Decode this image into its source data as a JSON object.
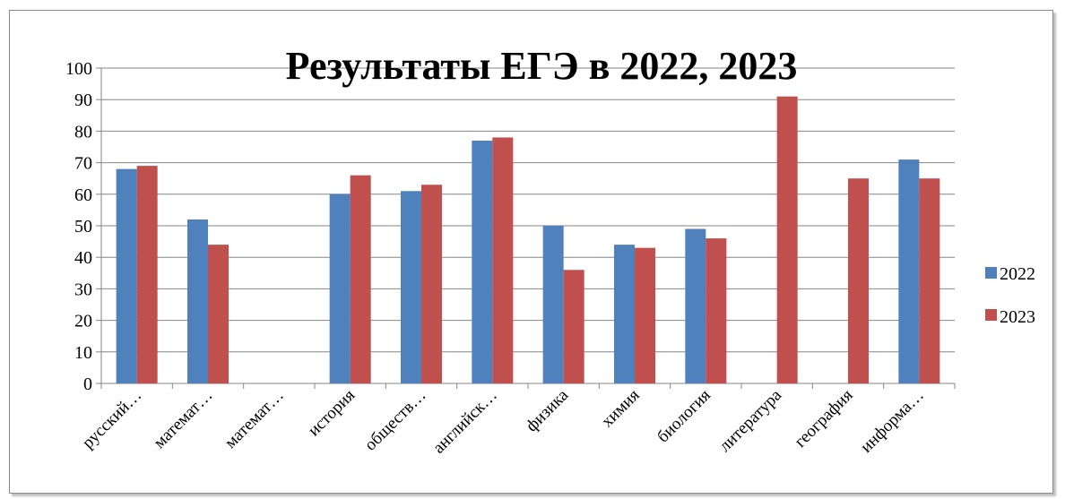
{
  "chart_data": {
    "type": "bar",
    "title": "Результаты ЕГЭ в 2022, 2023",
    "xlabel": "",
    "ylabel": "",
    "ylim": [
      0,
      100
    ],
    "yticks": [
      "0",
      "10",
      "20",
      "30",
      "40",
      "50",
      "60",
      "70",
      "80",
      "90",
      "100"
    ],
    "grid": true,
    "legend_position": "right",
    "categories": [
      "русский…",
      "математ…",
      "математ…",
      "история",
      "обществ…",
      "английск…",
      "физика",
      "химия",
      "биология",
      "литература",
      "география",
      "информа…"
    ],
    "series": [
      {
        "name": "2022",
        "color": "#4F81BD",
        "values": [
          68,
          52,
          null,
          60,
          61,
          77,
          50,
          44,
          49,
          null,
          null,
          71
        ]
      },
      {
        "name": "2023",
        "color": "#C0504D",
        "values": [
          69,
          44,
          null,
          66,
          63,
          78,
          36,
          43,
          46,
          91,
          65,
          65
        ]
      }
    ]
  }
}
